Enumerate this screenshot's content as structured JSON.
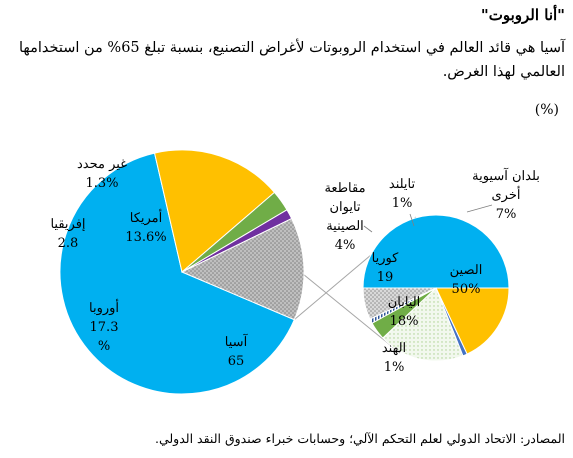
{
  "header": {
    "title": "\"أنا الروبوت\"",
    "subtitle": "آسيا هي قائد العالم في استخدام الروبوتات لأغراض التصنيع، بنسبة تبلغ 65% من استخدامها العالمي لهذا الغرض.",
    "unit": "(%)"
  },
  "footer": {
    "source": "المصادر: الاتحاد الدولي لعلم التحكم الآلي؛ وحسابات خبراء صندوق النقد الدولي."
  },
  "colors": {
    "asia": "#00B0F0",
    "europe": "#FFC000",
    "africa": "#70AD47",
    "unspecified": "#7030A0",
    "americas": "#A6A6A6",
    "china": "#00B0F0",
    "japan": "#FFC000",
    "india": "#4472C4",
    "korea": "#E2EFDA",
    "taiwan": "#70AD47",
    "thailand": "#2F5597",
    "other_asia": "#BFBFBF"
  },
  "chart_data": [
    {
      "type": "pie",
      "title": "",
      "slices": [
        {
          "key": "asia",
          "lines": [
            "آسيا",
            "65"
          ],
          "value": 65
        },
        {
          "key": "europe",
          "lines": [
            "أوروبا",
            "17.3",
            "%"
          ],
          "value": 17.3
        },
        {
          "key": "africa",
          "lines": [
            "إفريقيا",
            "2.8"
          ],
          "value": 2.8
        },
        {
          "key": "unspecified",
          "lines": [
            "غير محدد",
            "1.3%"
          ],
          "value": 1.3
        },
        {
          "key": "americas",
          "lines": [
            "أمريكا",
            "13.6%"
          ],
          "value": 13.6
        }
      ]
    },
    {
      "type": "pie",
      "title": "",
      "slices": [
        {
          "key": "china",
          "lines": [
            "الصين",
            "50%"
          ],
          "value": 50
        },
        {
          "key": "japan",
          "lines": [
            "اليابان",
            "18%"
          ],
          "value": 18
        },
        {
          "key": "india",
          "lines": [
            "الهند",
            "1%"
          ],
          "value": 1
        },
        {
          "key": "korea",
          "lines": [
            "كوريا",
            "19"
          ],
          "value": 19
        },
        {
          "key": "taiwan",
          "lines": [
            "مقاطعة",
            "تايوان",
            "الصينية",
            "4%"
          ],
          "value": 4
        },
        {
          "key": "thailand",
          "lines": [
            "تايلند",
            "1%"
          ],
          "value": 1
        },
        {
          "key": "other_asia",
          "lines": [
            "بلدان آسيوية",
            "أخرى",
            "7%"
          ],
          "value": 7
        }
      ]
    }
  ]
}
